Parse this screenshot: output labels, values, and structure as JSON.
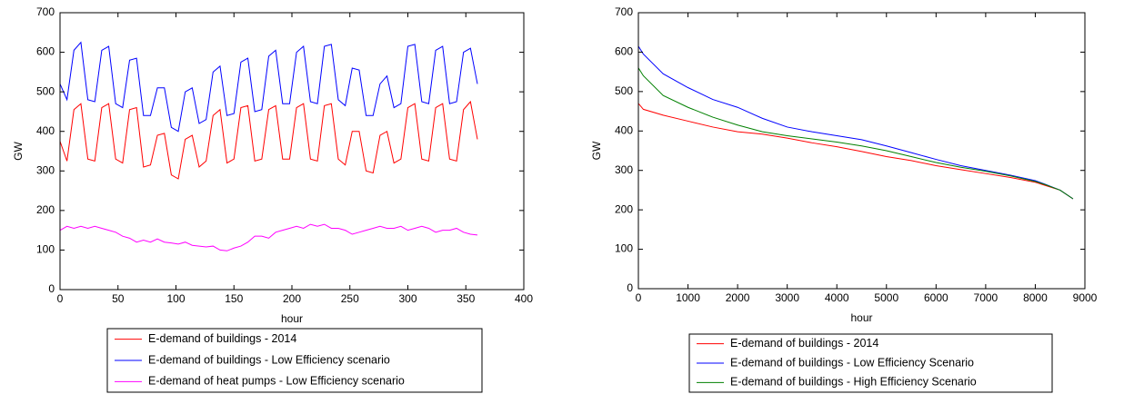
{
  "chart_data": [
    {
      "type": "line",
      "xlabel": "hour",
      "ylabel": "GW",
      "xlim": [
        0,
        400
      ],
      "xticks": [
        0,
        50,
        100,
        150,
        200,
        250,
        300,
        350,
        400
      ],
      "ylim": [
        0,
        700
      ],
      "yticks": [
        0,
        100,
        200,
        300,
        400,
        500,
        600,
        700
      ],
      "x": [
        0,
        6,
        12,
        18,
        24,
        30,
        36,
        42,
        48,
        54,
        60,
        66,
        72,
        78,
        84,
        90,
        96,
        102,
        108,
        114,
        120,
        126,
        132,
        138,
        144,
        150,
        156,
        162,
        168,
        174,
        180,
        186,
        192,
        198,
        204,
        210,
        216,
        222,
        228,
        234,
        240,
        246,
        252,
        258,
        264,
        270,
        276,
        282,
        288,
        294,
        300,
        306,
        312,
        318,
        324,
        330,
        336,
        342,
        348,
        354,
        360
      ],
      "series": [
        {
          "name": "E-demand of buildings - 2014",
          "color": "#ff0000",
          "values": [
            375,
            325,
            455,
            470,
            330,
            325,
            460,
            470,
            330,
            320,
            455,
            460,
            310,
            315,
            390,
            395,
            290,
            280,
            380,
            390,
            310,
            325,
            440,
            455,
            320,
            330,
            460,
            465,
            325,
            330,
            455,
            465,
            330,
            330,
            460,
            470,
            330,
            325,
            465,
            470,
            330,
            315,
            400,
            400,
            300,
            295,
            390,
            400,
            320,
            330,
            460,
            470,
            330,
            325,
            460,
            470,
            330,
            325,
            455,
            475,
            380
          ]
        },
        {
          "name": "E-demand of buildings - Low Efficiency scenario",
          "color": "#0000ff",
          "values": [
            520,
            480,
            605,
            625,
            480,
            475,
            605,
            615,
            470,
            460,
            580,
            585,
            440,
            440,
            510,
            510,
            410,
            400,
            500,
            510,
            420,
            430,
            550,
            565,
            440,
            445,
            575,
            585,
            450,
            455,
            590,
            605,
            470,
            470,
            600,
            615,
            475,
            470,
            615,
            620,
            480,
            465,
            560,
            555,
            440,
            440,
            520,
            540,
            460,
            470,
            615,
            620,
            475,
            470,
            605,
            615,
            470,
            475,
            600,
            610,
            520
          ]
        },
        {
          "name": "E-demand of heat pumps - Low Efficiency scenario",
          "color": "#ff00ff",
          "values": [
            150,
            160,
            155,
            160,
            155,
            160,
            155,
            150,
            145,
            135,
            130,
            120,
            125,
            120,
            128,
            120,
            118,
            115,
            120,
            112,
            110,
            108,
            110,
            100,
            98,
            105,
            110,
            120,
            135,
            135,
            130,
            145,
            150,
            155,
            160,
            155,
            165,
            160,
            165,
            155,
            155,
            150,
            140,
            145,
            150,
            155,
            160,
            155,
            155,
            160,
            150,
            155,
            160,
            155,
            145,
            150,
            150,
            155,
            145,
            140,
            138
          ]
        }
      ]
    },
    {
      "type": "line",
      "xlabel": "hour",
      "ylabel": "GW",
      "xlim": [
        0,
        9000
      ],
      "xticks": [
        0,
        1000,
        2000,
        3000,
        4000,
        5000,
        6000,
        7000,
        8000,
        9000
      ],
      "ylim": [
        0,
        700
      ],
      "yticks": [
        0,
        100,
        200,
        300,
        400,
        500,
        600,
        700
      ],
      "x": [
        0,
        100,
        500,
        1000,
        1500,
        2000,
        2500,
        3000,
        3500,
        4000,
        4500,
        5000,
        5500,
        6000,
        6500,
        7000,
        7500,
        8000,
        8200,
        8500,
        8760
      ],
      "series": [
        {
          "name": "E-demand of buildings - 2014",
          "color": "#ff0000",
          "values": [
            470,
            455,
            440,
            425,
            410,
            398,
            392,
            382,
            370,
            360,
            348,
            335,
            325,
            312,
            302,
            292,
            282,
            270,
            262,
            250,
            228
          ]
        },
        {
          "name": "E-demand of buildings - Low Efficiency Scenario",
          "color": "#0000ff",
          "values": [
            615,
            595,
            545,
            510,
            480,
            460,
            432,
            410,
            398,
            388,
            378,
            362,
            345,
            328,
            312,
            300,
            288,
            274,
            265,
            250,
            228
          ]
        },
        {
          "name": "E-demand of buildings - High Efficiency Scenario",
          "color": "#008000",
          "values": [
            560,
            540,
            490,
            460,
            435,
            415,
            398,
            388,
            380,
            372,
            362,
            350,
            335,
            320,
            308,
            298,
            286,
            272,
            264,
            250,
            228
          ]
        }
      ]
    }
  ]
}
